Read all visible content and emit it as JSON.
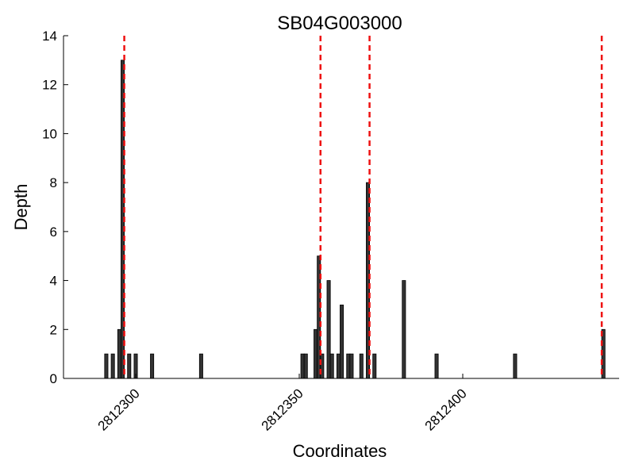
{
  "chart_data": {
    "type": "bar",
    "title": "SB04G003000",
    "xlabel": "Coordinates",
    "ylabel": "Depth",
    "xlim": [
      2812290,
      2812440
    ],
    "ylim": [
      0,
      14
    ],
    "x_ticks": [
      {
        "value": 2812300,
        "label": "2812300"
      },
      {
        "value": 2812350,
        "label": "2812350"
      },
      {
        "value": 2812400,
        "label": "2812400"
      }
    ],
    "y_ticks": [
      {
        "value": 0,
        "label": "0"
      },
      {
        "value": 2,
        "label": "2"
      },
      {
        "value": 4,
        "label": "4"
      },
      {
        "value": 6,
        "label": "6"
      },
      {
        "value": 8,
        "label": "8"
      },
      {
        "value": 10,
        "label": "10"
      },
      {
        "value": 12,
        "label": "12"
      },
      {
        "value": 14,
        "label": "14"
      }
    ],
    "bars": [
      {
        "x": 2812291,
        "y": 1
      },
      {
        "x": 2812293,
        "y": 1
      },
      {
        "x": 2812295,
        "y": 2
      },
      {
        "x": 2812296,
        "y": 13
      },
      {
        "x": 2812298,
        "y": 1
      },
      {
        "x": 2812300,
        "y": 1
      },
      {
        "x": 2812305,
        "y": 1
      },
      {
        "x": 2812320,
        "y": 1
      },
      {
        "x": 2812351,
        "y": 1
      },
      {
        "x": 2812352,
        "y": 1
      },
      {
        "x": 2812355,
        "y": 2
      },
      {
        "x": 2812356,
        "y": 5
      },
      {
        "x": 2812357,
        "y": 1
      },
      {
        "x": 2812359,
        "y": 4
      },
      {
        "x": 2812360,
        "y": 1
      },
      {
        "x": 2812362,
        "y": 1
      },
      {
        "x": 2812363,
        "y": 3
      },
      {
        "x": 2812365,
        "y": 1
      },
      {
        "x": 2812366,
        "y": 1
      },
      {
        "x": 2812369,
        "y": 1
      },
      {
        "x": 2812371,
        "y": 8
      },
      {
        "x": 2812373,
        "y": 1
      },
      {
        "x": 2812382,
        "y": 4
      },
      {
        "x": 2812392,
        "y": 1
      },
      {
        "x": 2812416,
        "y": 1
      },
      {
        "x": 2812443,
        "y": 2
      }
    ],
    "vlines": [
      2812296.5,
      2812356.5,
      2812371.5,
      2812442.5
    ],
    "bar_color": "#333333",
    "vline_color": "#ee1111",
    "vline_style": "dashed",
    "grid": false
  }
}
